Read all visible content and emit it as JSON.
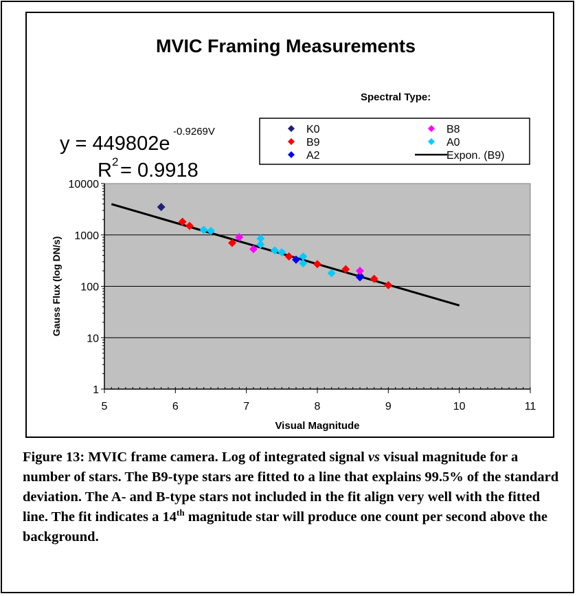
{
  "chart_data": {
    "type": "scatter",
    "title": "MVIC Framing Measurements",
    "xlabel": "Visual Magnitude",
    "ylabel": "Gauss Flux (log DN/s)",
    "xlim": [
      5,
      11
    ],
    "ylim": [
      1,
      10000
    ],
    "y_scale": "log",
    "x_ticks": [
      "5",
      "6",
      "7",
      "8",
      "9",
      "10",
      "11"
    ],
    "y_ticks": [
      "1",
      "10",
      "100",
      "1000",
      "10000"
    ],
    "grid": "horizontal",
    "plot_background": "#C0C0C0",
    "legend_title": "Spectral Type:",
    "legend_position": "top-right",
    "equation": {
      "prefix": "y = 449802e",
      "exponent": "-0.9269V",
      "r2_prefix": "R",
      "r2_sup": "2",
      "r2_suffix": " = 0.9918"
    },
    "series": [
      {
        "name": "K0",
        "color": "#1F1F7A",
        "marker": "diamond",
        "points": [
          [
            5.8,
            3500
          ],
          [
            8.6,
            160
          ]
        ]
      },
      {
        "name": "B9",
        "color": "#FF0000",
        "marker": "diamond",
        "points": [
          [
            6.1,
            1800
          ],
          [
            6.2,
            1500
          ],
          [
            6.8,
            700
          ],
          [
            7.6,
            380
          ],
          [
            8.0,
            270
          ],
          [
            8.4,
            215
          ],
          [
            8.8,
            140
          ],
          [
            9.0,
            105
          ]
        ]
      },
      {
        "name": "A2",
        "color": "#0000FF",
        "marker": "diamond",
        "points": [
          [
            7.7,
            330
          ],
          [
            8.6,
            150
          ]
        ]
      },
      {
        "name": "B8",
        "color": "#FF00FF",
        "marker": "diamond",
        "points": [
          [
            6.9,
            900
          ],
          [
            7.1,
            530
          ],
          [
            8.6,
            200
          ]
        ]
      },
      {
        "name": "A0",
        "color": "#00CCFF",
        "marker": "diamond",
        "points": [
          [
            6.4,
            1250
          ],
          [
            6.5,
            1200
          ],
          [
            7.2,
            850
          ],
          [
            7.2,
            650
          ],
          [
            7.4,
            500
          ],
          [
            7.5,
            460
          ],
          [
            7.8,
            380
          ],
          [
            7.8,
            280
          ],
          [
            8.2,
            180
          ]
        ]
      }
    ],
    "fit": {
      "name": "Expon. (B9)",
      "color": "#000000",
      "type": "exponential",
      "a": 449802,
      "b": -0.9269,
      "x_range": [
        5.1,
        10
      ]
    }
  },
  "caption": {
    "part1": "Figure 13: MVIC frame camera. Log of integrated signal ",
    "vs": "vs",
    "part2": " visual magnitude for a number of stars.  The B9-type stars are fitted to a line that explains 99.5% of the standard deviation.  The A- and B-type stars not included in the fit align very well with the fitted line.  The fit indicates a 14",
    "sup": "th",
    "part3": " magnitude star will produce one count per second above the background."
  }
}
